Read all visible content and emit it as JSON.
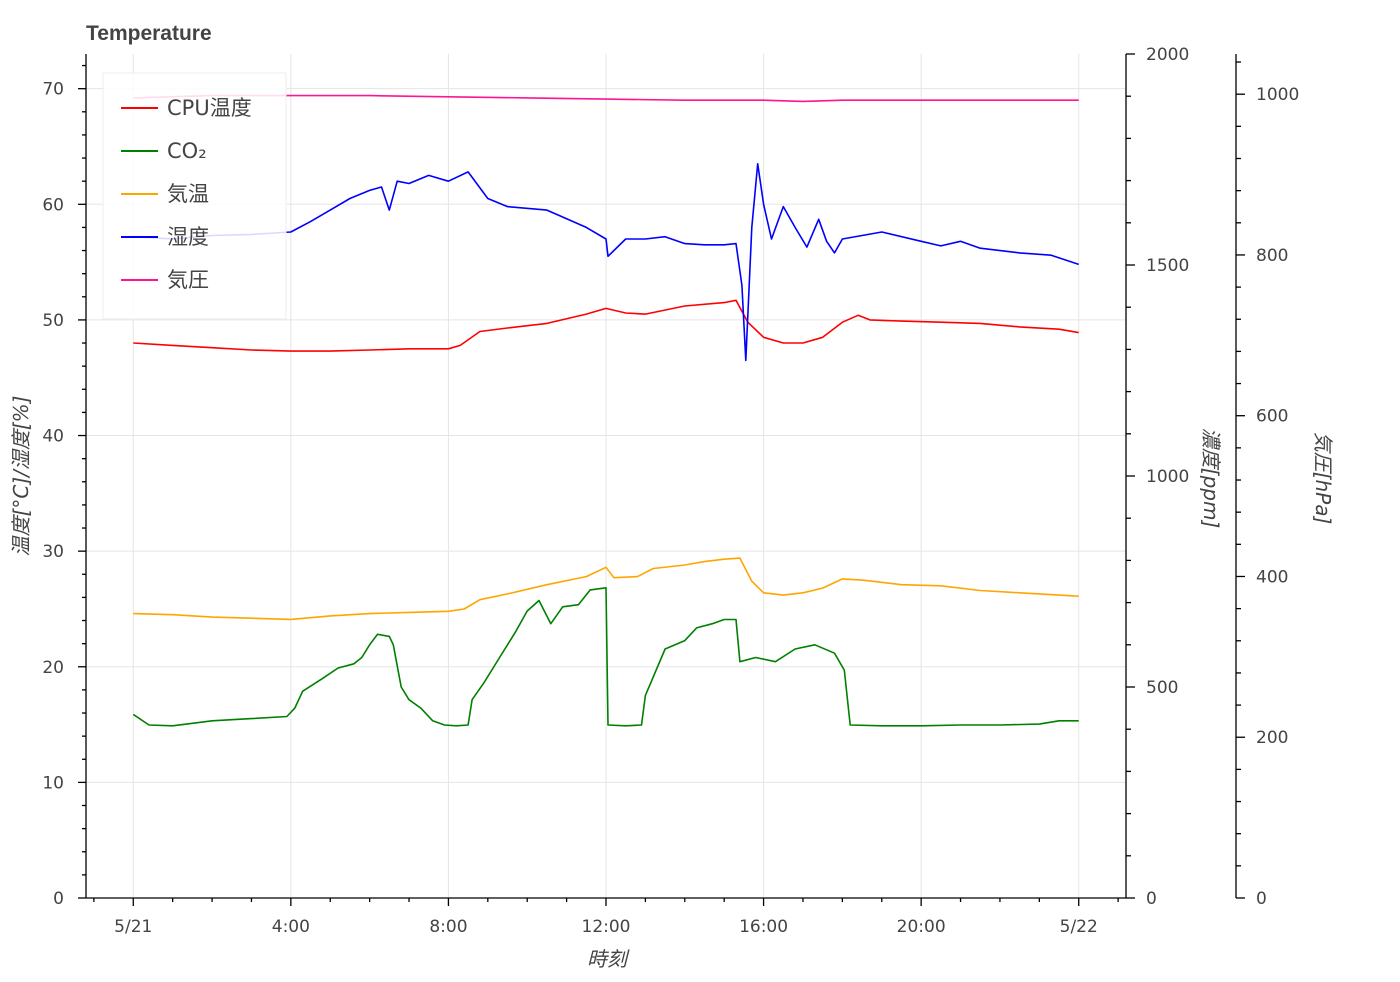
{
  "chart_data": {
    "type": "line",
    "title": "Temperature",
    "xlabel": "時刻",
    "x_ticks": [
      "5/21",
      "4:00",
      "8:00",
      "12:00",
      "16:00",
      "20:00",
      "5/22"
    ],
    "x_range_hours": [
      -1.2,
      25.2
    ],
    "y_axes": [
      {
        "id": "left",
        "label": "温度[°C]/湿度[%]",
        "range": [
          0,
          73
        ],
        "ticks": [
          0,
          10,
          20,
          30,
          40,
          50,
          60,
          70
        ]
      },
      {
        "id": "co2",
        "label": "濃度[ppm]",
        "range": [
          0,
          2000
        ],
        "ticks": [
          0,
          500,
          1000,
          1500,
          2000
        ]
      },
      {
        "id": "pressure",
        "label": "気圧[hPa]",
        "range": [
          0,
          1050
        ],
        "ticks": [
          0,
          200,
          400,
          600,
          800,
          1000
        ]
      }
    ],
    "grid": true,
    "legend_position": "top-left",
    "series": [
      {
        "name": "CPU温度",
        "color": "#ff0000",
        "axis": "left",
        "points": [
          [
            0,
            48.0
          ],
          [
            1,
            47.8
          ],
          [
            2,
            47.6
          ],
          [
            3,
            47.4
          ],
          [
            4,
            47.3
          ],
          [
            5,
            47.3
          ],
          [
            6,
            47.4
          ],
          [
            7,
            47.5
          ],
          [
            8,
            47.5
          ],
          [
            8.3,
            47.8
          ],
          [
            8.8,
            49.0
          ],
          [
            9.5,
            49.3
          ],
          [
            10.5,
            49.7
          ],
          [
            11.5,
            50.5
          ],
          [
            12,
            51.0
          ],
          [
            12.5,
            50.6
          ],
          [
            13,
            50.5
          ],
          [
            14,
            51.2
          ],
          [
            15,
            51.5
          ],
          [
            15.3,
            51.7
          ],
          [
            15.6,
            49.8
          ],
          [
            16,
            48.5
          ],
          [
            16.5,
            48.0
          ],
          [
            17,
            48.0
          ],
          [
            17.5,
            48.5
          ],
          [
            18,
            49.8
          ],
          [
            18.4,
            50.4
          ],
          [
            18.7,
            50.0
          ],
          [
            19.5,
            49.9
          ],
          [
            20.5,
            49.8
          ],
          [
            21.5,
            49.7
          ],
          [
            22.5,
            49.4
          ],
          [
            23.5,
            49.2
          ],
          [
            24,
            48.9
          ]
        ]
      },
      {
        "name": "CO₂",
        "color": "#008000",
        "axis": "co2",
        "points": [
          [
            0,
            435
          ],
          [
            0.4,
            410
          ],
          [
            1,
            408
          ],
          [
            2,
            420
          ],
          [
            3,
            425
          ],
          [
            3.9,
            430
          ],
          [
            4.1,
            450
          ],
          [
            4.3,
            490
          ],
          [
            4.8,
            520
          ],
          [
            5.2,
            545
          ],
          [
            5.6,
            555
          ],
          [
            5.8,
            570
          ],
          [
            6,
            600
          ],
          [
            6.2,
            625
          ],
          [
            6.5,
            620
          ],
          [
            6.6,
            600
          ],
          [
            6.8,
            500
          ],
          [
            7,
            470
          ],
          [
            7.3,
            450
          ],
          [
            7.6,
            420
          ],
          [
            7.9,
            410
          ],
          [
            8.2,
            408
          ],
          [
            8.5,
            410
          ],
          [
            8.6,
            470
          ],
          [
            8.9,
            510
          ],
          [
            9.3,
            570
          ],
          [
            9.7,
            630
          ],
          [
            10,
            680
          ],
          [
            10.3,
            705
          ],
          [
            10.6,
            650
          ],
          [
            10.9,
            690
          ],
          [
            11.3,
            695
          ],
          [
            11.6,
            730
          ],
          [
            12,
            735
          ],
          [
            12.05,
            410
          ],
          [
            12.5,
            408
          ],
          [
            12.9,
            410
          ],
          [
            13.0,
            480
          ],
          [
            13.5,
            590
          ],
          [
            14,
            610
          ],
          [
            14.3,
            640
          ],
          [
            14.7,
            650
          ],
          [
            15,
            660
          ],
          [
            15.3,
            660
          ],
          [
            15.4,
            560
          ],
          [
            15.8,
            570
          ],
          [
            16.3,
            560
          ],
          [
            16.8,
            590
          ],
          [
            17.3,
            600
          ],
          [
            17.8,
            580
          ],
          [
            18.05,
            540
          ],
          [
            18.2,
            410
          ],
          [
            19,
            408
          ],
          [
            20,
            408
          ],
          [
            21,
            410
          ],
          [
            22,
            410
          ],
          [
            23,
            412
          ],
          [
            23.5,
            420
          ],
          [
            24,
            420
          ]
        ]
      },
      {
        "name": "気温",
        "color": "#ffa500",
        "axis": "left",
        "points": [
          [
            0,
            24.6
          ],
          [
            1,
            24.5
          ],
          [
            2,
            24.3
          ],
          [
            3,
            24.2
          ],
          [
            4,
            24.1
          ],
          [
            5,
            24.4
          ],
          [
            6,
            24.6
          ],
          [
            7,
            24.7
          ],
          [
            8,
            24.8
          ],
          [
            8.4,
            25.0
          ],
          [
            8.8,
            25.8
          ],
          [
            9.5,
            26.3
          ],
          [
            10.5,
            27.1
          ],
          [
            11.5,
            27.8
          ],
          [
            12,
            28.6
          ],
          [
            12.2,
            27.7
          ],
          [
            12.8,
            27.8
          ],
          [
            13.2,
            28.5
          ],
          [
            14,
            28.8
          ],
          [
            14.5,
            29.1
          ],
          [
            15,
            29.3
          ],
          [
            15.4,
            29.4
          ],
          [
            15.7,
            27.4
          ],
          [
            16,
            26.4
          ],
          [
            16.5,
            26.2
          ],
          [
            17,
            26.4
          ],
          [
            17.5,
            26.8
          ],
          [
            18,
            27.6
          ],
          [
            18.5,
            27.5
          ],
          [
            19.5,
            27.1
          ],
          [
            20.5,
            27.0
          ],
          [
            21.5,
            26.6
          ],
          [
            22.5,
            26.4
          ],
          [
            23.5,
            26.2
          ],
          [
            24,
            26.1
          ]
        ]
      },
      {
        "name": "湿度",
        "color": "#0000ff",
        "axis": "left",
        "points": [
          [
            0,
            57.2
          ],
          [
            1,
            57.0
          ],
          [
            2,
            57.3
          ],
          [
            3,
            57.4
          ],
          [
            4,
            57.6
          ],
          [
            4.5,
            58.5
          ],
          [
            5,
            59.5
          ],
          [
            5.5,
            60.5
          ],
          [
            6,
            61.2
          ],
          [
            6.3,
            61.5
          ],
          [
            6.5,
            59.5
          ],
          [
            6.7,
            62.0
          ],
          [
            7,
            61.8
          ],
          [
            7.5,
            62.5
          ],
          [
            8,
            62.0
          ],
          [
            8.5,
            62.8
          ],
          [
            9,
            60.5
          ],
          [
            9.5,
            59.8
          ],
          [
            10.5,
            59.5
          ],
          [
            11.5,
            58.0
          ],
          [
            12,
            57.0
          ],
          [
            12.05,
            55.5
          ],
          [
            12.5,
            57.0
          ],
          [
            13,
            57.0
          ],
          [
            13.5,
            57.2
          ],
          [
            14,
            56.6
          ],
          [
            14.5,
            56.5
          ],
          [
            15,
            56.5
          ],
          [
            15.3,
            56.6
          ],
          [
            15.45,
            53.0
          ],
          [
            15.55,
            46.5
          ],
          [
            15.7,
            58.0
          ],
          [
            15.85,
            63.5
          ],
          [
            16,
            60.0
          ],
          [
            16.2,
            57.0
          ],
          [
            16.5,
            59.8
          ],
          [
            16.8,
            58.0
          ],
          [
            17.1,
            56.3
          ],
          [
            17.4,
            58.7
          ],
          [
            17.6,
            56.8
          ],
          [
            17.8,
            55.8
          ],
          [
            18,
            57.0
          ],
          [
            19,
            57.6
          ],
          [
            20,
            56.8
          ],
          [
            20.5,
            56.4
          ],
          [
            21,
            56.8
          ],
          [
            21.5,
            56.2
          ],
          [
            22.5,
            55.8
          ],
          [
            23.3,
            55.6
          ],
          [
            24,
            54.8
          ]
        ]
      },
      {
        "name": "気圧",
        "color": "#ff1493",
        "axis": "left",
        "points": [
          [
            0,
            69.2
          ],
          [
            2,
            69.4
          ],
          [
            4,
            69.4
          ],
          [
            6,
            69.4
          ],
          [
            8,
            69.3
          ],
          [
            10,
            69.2
          ],
          [
            12,
            69.1
          ],
          [
            14,
            69.0
          ],
          [
            15,
            69.0
          ],
          [
            16,
            69.0
          ],
          [
            17,
            68.9
          ],
          [
            18,
            69.0
          ],
          [
            20,
            69.0
          ],
          [
            22,
            69.0
          ],
          [
            24,
            69.0
          ]
        ]
      }
    ]
  }
}
